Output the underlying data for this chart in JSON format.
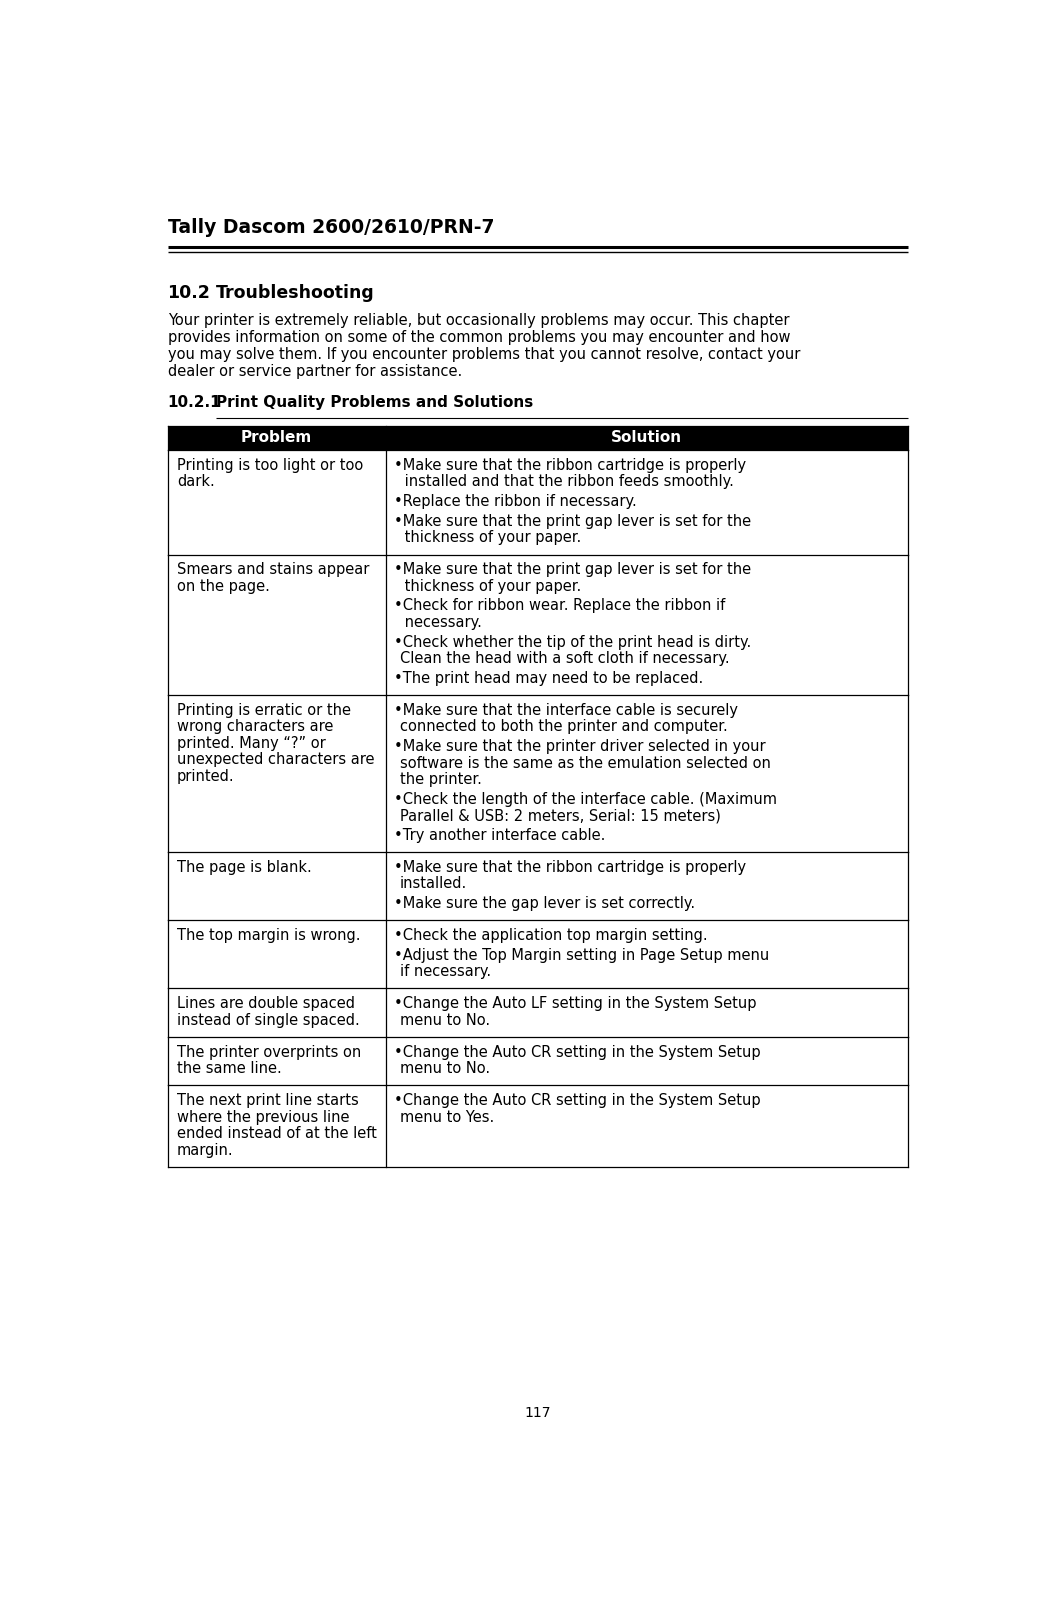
{
  "page_title": "Tally Dascom 2600/2610/PRN-7",
  "section_number": "10.2",
  "section_title": "Troubleshooting",
  "intro_lines": [
    "Your printer is extremely reliable, but occasionally problems may occur. This chapter",
    "provides information on some of the common problems you may encounter and how",
    "you may solve them. If you encounter problems that you cannot resolve, contact your",
    "dealer or service partner for assistance."
  ],
  "subsection_number": "10.2.1",
  "subsection_title": "Print Quality Problems and Solutions",
  "table_header": [
    "Problem",
    "Solution"
  ],
  "table_rows": [
    {
      "problem_lines": [
        "Printing is too light or too",
        "dark."
      ],
      "solution_bullets": [
        [
          "Make sure that the ribbon cartridge is properly",
          " installed and that the ribbon feeds smoothly."
        ],
        [
          "Replace the ribbon if necessary."
        ],
        [
          "Make sure that the print gap lever is set for the",
          " thickness of your paper."
        ]
      ]
    },
    {
      "problem_lines": [
        "Smears and stains appear",
        "on the page."
      ],
      "solution_bullets": [
        [
          "Make sure that the print gap lever is set for the",
          " thickness of your paper."
        ],
        [
          "Check for ribbon wear. Replace the ribbon if",
          " necessary."
        ],
        [
          "Check whether the tip of the print head is dirty.",
          "Clean the head with a soft cloth if necessary."
        ],
        [
          "The print head may need to be replaced."
        ]
      ]
    },
    {
      "problem_lines": [
        "Printing is erratic or the",
        "wrong characters are",
        "printed. Many “?” or",
        "unexpected characters are",
        "printed."
      ],
      "solution_bullets": [
        [
          "Make sure that the interface cable is securely",
          "connected to both the printer and computer."
        ],
        [
          "Make sure that the printer driver selected in your",
          "software is the same as the emulation selected on",
          "the printer."
        ],
        [
          "Check the length of the interface cable. (Maximum",
          "Parallel & USB: 2 meters, Serial: 15 meters)"
        ],
        [
          "Try another interface cable."
        ]
      ]
    },
    {
      "problem_lines": [
        "The page is blank."
      ],
      "solution_bullets": [
        [
          "Make sure that the ribbon cartridge is properly",
          "installed."
        ],
        [
          "Make sure the gap lever is set correctly."
        ]
      ]
    },
    {
      "problem_lines": [
        "The top margin is wrong."
      ],
      "solution_bullets": [
        [
          "Check the application top margin setting."
        ],
        [
          "Adjust the Top Margin setting in Page Setup menu",
          "if necessary."
        ]
      ]
    },
    {
      "problem_lines": [
        "Lines are double spaced",
        "instead of single spaced."
      ],
      "solution_bullets": [
        [
          "Change the Auto LF setting in the System Setup",
          "menu to No."
        ]
      ]
    },
    {
      "problem_lines": [
        "The printer overprints on",
        "the same line."
      ],
      "solution_bullets": [
        [
          "Change the Auto CR setting in the System Setup",
          "menu to No."
        ]
      ]
    },
    {
      "problem_lines": [
        "The next print line starts",
        "where the previous line",
        "ended instead of at the left",
        "margin."
      ],
      "solution_bullets": [
        [
          "Change the Auto CR setting in the System Setup",
          "menu to Yes."
        ]
      ]
    }
  ],
  "page_number": "117",
  "bg_color": "#ffffff",
  "text_color": "#000000",
  "header_bg": "#000000",
  "header_text_color": "#ffffff"
}
